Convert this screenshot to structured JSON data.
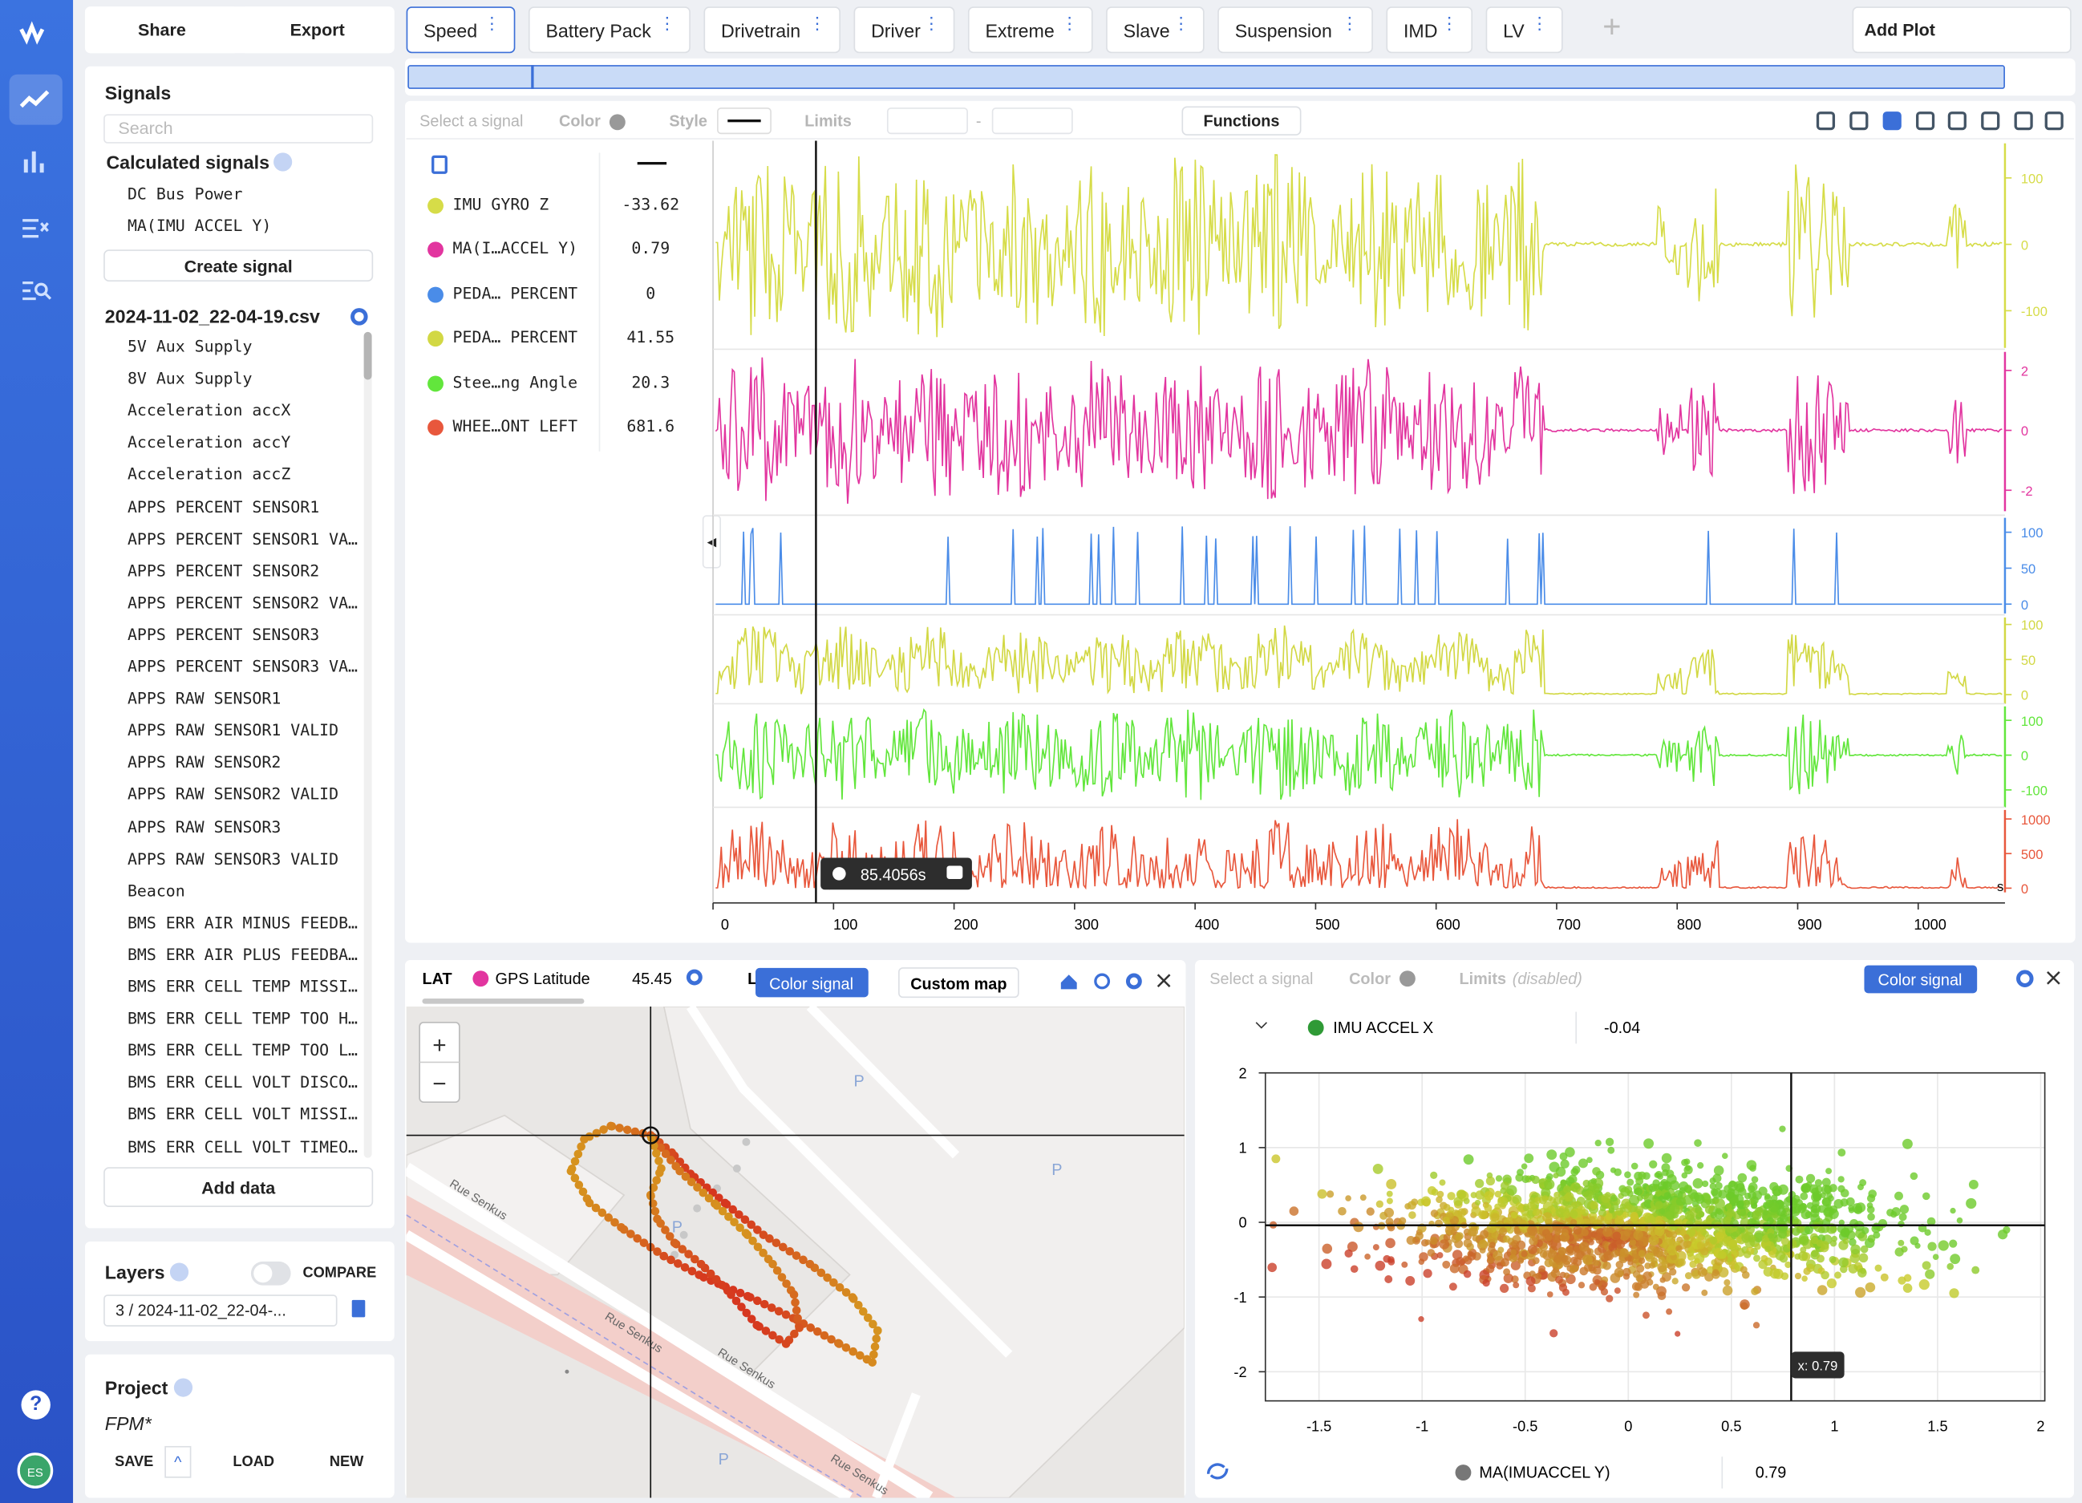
{
  "app": {
    "help": "?",
    "user_initials": "ES"
  },
  "toolbar": {
    "share": "Share",
    "export": "Export",
    "tabs": [
      "Speed",
      "Battery Pack",
      "Drivetrain",
      "Driver",
      "Extreme",
      "Slave",
      "Suspension",
      "IMD",
      "LV"
    ],
    "add_plot": "Add Plot"
  },
  "signals_panel": {
    "title": "Signals",
    "search_placeholder": "Search",
    "calculated_title": "Calculated signals",
    "calculated": [
      "DC Bus Power",
      "MA(IMU ACCEL Y)"
    ],
    "create_signal": "Create signal",
    "file": "2024-11-02_22-04-19.csv",
    "signals": [
      "5V Aux Supply",
      "8V Aux Supply",
      "Acceleration accX",
      "Acceleration accY",
      "Acceleration accZ",
      "APPS PERCENT SENSOR1",
      "APPS PERCENT SENSOR1 VA…",
      "APPS PERCENT SENSOR2",
      "APPS PERCENT SENSOR2 VA…",
      "APPS PERCENT SENSOR3",
      "APPS PERCENT SENSOR3 VA…",
      "APPS RAW SENSOR1",
      "APPS RAW SENSOR1 VALID",
      "APPS RAW SENSOR2",
      "APPS RAW SENSOR2 VALID",
      "APPS RAW SENSOR3",
      "APPS RAW SENSOR3 VALID",
      "Beacon",
      "BMS ERR AIR MINUS FEEDB…",
      "BMS ERR AIR PLUS FEEDBA…",
      "BMS ERR CELL TEMP MISSI…",
      "BMS ERR CELL TEMP TOO H…",
      "BMS ERR CELL TEMP TOO L…",
      "BMS ERR CELL VOLT DISCO…",
      "BMS ERR CELL VOLT MISSI…",
      "BMS ERR CELL VOLT TIMEO…"
    ],
    "add_data": "Add data"
  },
  "layers": {
    "title": "Layers",
    "compare": "COMPARE",
    "layer": "3 / 2024-11-02_22-04-..."
  },
  "project": {
    "title": "Project",
    "name": "FPM*",
    "save": "SAVE",
    "load": "LOAD",
    "new": "NEW"
  },
  "plot_toolbar": {
    "select_signal": "Select a signal",
    "color": "Color",
    "style": "Style",
    "limits": "Limits",
    "limits_sep": "-",
    "functions": "Functions"
  },
  "chart_data": [
    {
      "type": "line",
      "xlim": [
        0,
        1072
      ],
      "xticks": [
        0,
        100,
        200,
        300,
        400,
        500,
        600,
        700,
        800,
        900,
        1000
      ],
      "x_unit": "s",
      "cursor": {
        "value": 85.4056,
        "label": "85.4056s"
      },
      "series": [
        {
          "name": "IMU GYRO Z",
          "color": "#d6dc48",
          "cursor_value": -33.62,
          "ylim": [
            -156,
            152
          ],
          "yticks": [
            100,
            0,
            -100
          ]
        },
        {
          "name": "MA(I…ACCEL Y)",
          "color": "#e2359f",
          "cursor_value": 0.79,
          "ylim": [
            -2.7,
            2.62
          ],
          "yticks": [
            2,
            0,
            -2
          ]
        },
        {
          "name": "PEDA… PERCENT",
          "color": "#4a8ce8",
          "cursor_value": 0,
          "ylim": [
            -13,
            120
          ],
          "yticks": [
            100,
            50,
            0
          ]
        },
        {
          "name": "PEDA… PERCENT",
          "color": "#d2d844",
          "cursor_value": 41.55,
          "ylim": [
            -13,
            110
          ],
          "yticks": [
            100,
            50,
            0
          ]
        },
        {
          "name": "Stee…ng Angle",
          "color": "#62e63c",
          "cursor_value": 20.3,
          "ylim": [
            -150,
            140
          ],
          "yticks": [
            100,
            0,
            -100
          ]
        },
        {
          "name": "WHEE…ONT LEFT",
          "color": "#e8573c",
          "cursor_value": 681.6,
          "ylim": [
            -60,
            1130
          ],
          "yticks": [
            1000,
            500,
            0
          ]
        }
      ]
    },
    {
      "type": "scatter",
      "toolbar": {
        "select_signal": "Select a signal",
        "color": "Color",
        "limits": "Limits",
        "disabled": "(disabled)",
        "color_signal": "Color signal"
      },
      "y_signal": {
        "name": "IMU ACCEL X",
        "color": "#2f9a36",
        "value": -0.04
      },
      "x_signal": {
        "name": "MA(IMUACCEL Y)",
        "color": "#777777",
        "value": 0.79
      },
      "xlim": [
        -1.76,
        2.02
      ],
      "ylim": [
        -2.39,
        2
      ],
      "xticks": [
        -1.5,
        -1,
        -0.5,
        0,
        0.5,
        1,
        1.5,
        2
      ],
      "yticks": [
        2,
        1,
        0,
        -1,
        -2
      ],
      "cursor_label": "x: 0.79",
      "grid": true
    }
  ],
  "map": {
    "lat": "LAT",
    "signal": "GPS Latitude",
    "signal_color": "#e2359f",
    "value": 45.45,
    "cut_label": "L",
    "color_signal": "Color signal",
    "custom_map": "Custom map",
    "zoom_in": "+",
    "zoom_out": "−",
    "streets": [
      "Rue Senkus",
      "Rue Senkus",
      "Rue Senkus",
      "Rue Senkus"
    ],
    "parking": [
      "P",
      "P",
      "P",
      "P"
    ]
  }
}
